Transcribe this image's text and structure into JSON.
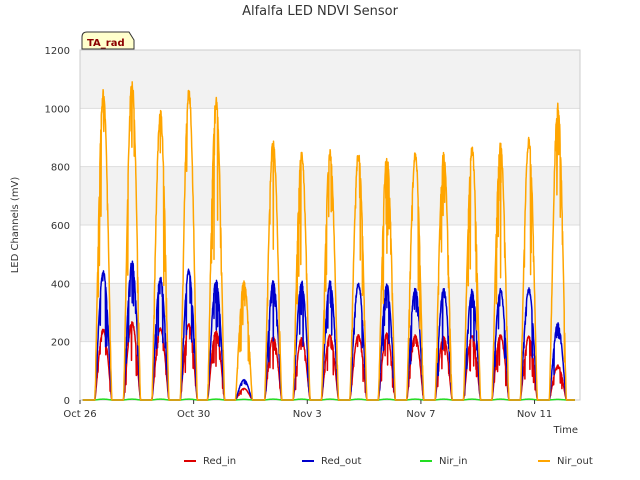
{
  "chart_data": {
    "type": "line",
    "title": "Alfalfa LED NDVI Sensor",
    "xlabel": "Time",
    "ylabel": "LED Channels (mV)",
    "badge": "TA_rad",
    "ylim": [
      0,
      1200
    ],
    "yticks": [
      0,
      200,
      400,
      600,
      800,
      1000,
      1200
    ],
    "xlim": [
      0,
      17.6
    ],
    "xticks": [
      {
        "value": 0,
        "label": "Oct 26"
      },
      {
        "value": 4,
        "label": "Oct 30"
      },
      {
        "value": 8,
        "label": "Nov 3"
      },
      {
        "value": 12,
        "label": "Nov 7"
      },
      {
        "value": 16,
        "label": "Nov 11"
      }
    ],
    "grid": true,
    "legend_position": "bottom-center",
    "day_centers": [
      0.82,
      1.83,
      2.83,
      3.83,
      4.79,
      5.77,
      6.8,
      7.8,
      8.8,
      9.8,
      10.8,
      11.8,
      12.8,
      13.8,
      14.8,
      15.8,
      16.82
    ],
    "series": [
      {
        "name": "Red_in",
        "color": "#dd0000",
        "peaks": [
          245,
          270,
          250,
          265,
          240,
          40,
          220,
          215,
          225,
          225,
          230,
          225,
          220,
          225,
          225,
          220,
          120
        ]
      },
      {
        "name": "Red_out",
        "color": "#0000cc",
        "peaks": [
          445,
          480,
          425,
          450,
          415,
          70,
          410,
          410,
          410,
          405,
          400,
          390,
          385,
          380,
          385,
          385,
          265
        ]
      },
      {
        "name": "Nir_in",
        "color": "#22dd22",
        "peaks": [
          3,
          3,
          3,
          3,
          3,
          2,
          3,
          3,
          3,
          3,
          3,
          3,
          3,
          3,
          3,
          3,
          2
        ]
      },
      {
        "name": "Nir_out",
        "color": "#ffa500",
        "peaks": [
          1075,
          1110,
          1000,
          1075,
          1040,
          410,
          900,
          855,
          860,
          855,
          845,
          855,
          850,
          870,
          885,
          905,
          1020
        ]
      }
    ]
  }
}
